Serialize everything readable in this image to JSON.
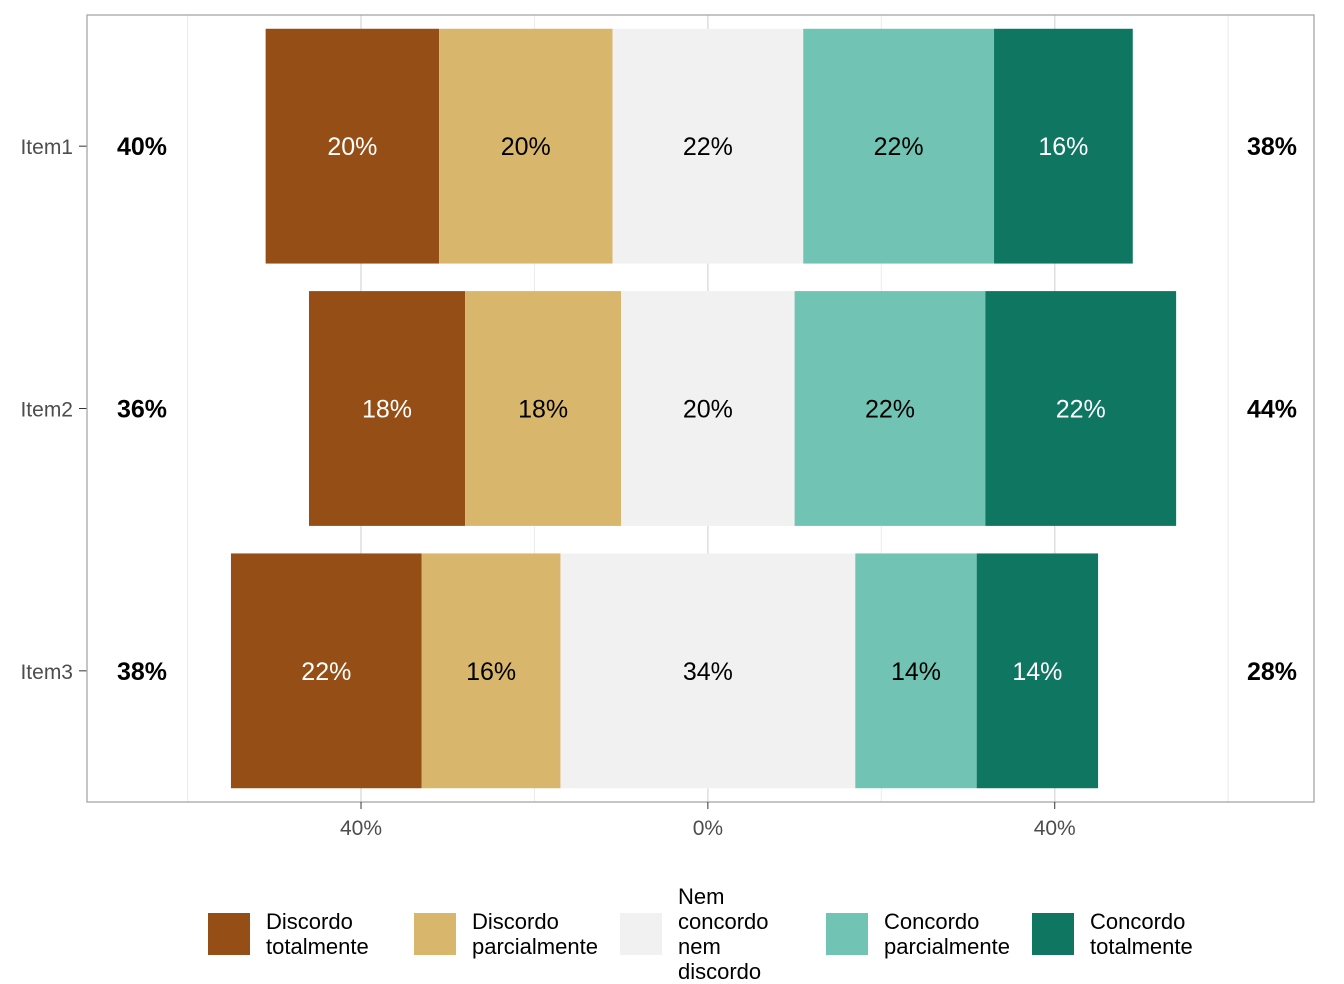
{
  "chart_data": {
    "type": "bar",
    "orientation": "horizontal-diverging",
    "categories": [
      "Item1",
      "Item2",
      "Item3"
    ],
    "series": [
      {
        "name": "Discordo totalmente",
        "color": "#944E16",
        "values": [
          20,
          18,
          22
        ],
        "labels": [
          "20%",
          "18%",
          "22%"
        ]
      },
      {
        "name": "Discordo parcialmente",
        "color": "#D8B66B",
        "values": [
          20,
          18,
          16
        ],
        "labels": [
          "20%",
          "18%",
          "16%"
        ]
      },
      {
        "name": "Nem concordo nem discordo",
        "color": "#F1F1F1",
        "values": [
          22,
          20,
          34
        ],
        "labels": [
          "22%",
          "20%",
          "34%"
        ]
      },
      {
        "name": "Concordo parcialmente",
        "color": "#71C3B3",
        "values": [
          22,
          22,
          14
        ],
        "labels": [
          "22%",
          "22%",
          "14%"
        ]
      },
      {
        "name": "Concordo totalmente",
        "color": "#0F7662",
        "values": [
          16,
          22,
          14
        ],
        "labels": [
          "16%",
          "22%",
          "14%"
        ]
      }
    ],
    "left_totals": [
      "40%",
      "36%",
      "38%"
    ],
    "right_totals": [
      "38%",
      "44%",
      "28%"
    ],
    "x_ticks": [
      -40,
      0,
      40
    ],
    "x_tick_labels": [
      "40%",
      "0%",
      "40%"
    ],
    "xlim": [
      -71.6,
      69.9
    ],
    "grid": true,
    "legend_position": "bottom",
    "legend_labels": [
      "Discordo\ntotalmente",
      "Discordo\nparcialmente",
      "Nem concordo\nnem discordo",
      "Concordo\nparcialmente",
      "Concordo\ntotalmente"
    ]
  }
}
